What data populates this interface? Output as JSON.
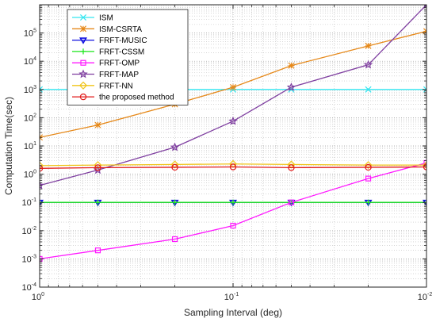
{
  "chart_data": {
    "type": "line",
    "xlabel": "Sampling Interval (deg)",
    "ylabel": "Computation Time(sec)",
    "x_scale": "log",
    "y_scale": "log",
    "x_reversed": true,
    "xlim": [
      1,
      0.01
    ],
    "ylim": [
      0.0001,
      1000000
    ],
    "grid": true,
    "legend_position": "top-left",
    "x_ticks": [
      {
        "base": "10",
        "exp": "0"
      },
      {
        "base": "10",
        "exp": "-1"
      },
      {
        "base": "10",
        "exp": "-2"
      }
    ],
    "y_ticks": [
      {
        "base": "10",
        "exp": "5"
      },
      {
        "base": "10",
        "exp": "4"
      },
      {
        "base": "10",
        "exp": "3"
      },
      {
        "base": "10",
        "exp": "2"
      },
      {
        "base": "10",
        "exp": "1"
      },
      {
        "base": "10",
        "exp": "0"
      },
      {
        "base": "10",
        "exp": "-1"
      },
      {
        "base": "10",
        "exp": "-2"
      },
      {
        "base": "10",
        "exp": "-3"
      },
      {
        "base": "10",
        "exp": "-4"
      }
    ],
    "x": [
      1,
      0.5,
      0.2,
      0.1,
      0.05,
      0.02,
      0.01
    ],
    "series": [
      {
        "name": "ISM",
        "color": "#33e6f0",
        "marker": "x",
        "values": [
          1000,
          1000,
          1000,
          1000,
          1000,
          1000,
          1000
        ]
      },
      {
        "name": "ISM-CSRTA",
        "color": "#e6891a",
        "marker": "asterisk",
        "values": [
          20,
          55,
          300,
          1200,
          7000,
          35000,
          115000
        ]
      },
      {
        "name": "FRFT-MUSIC",
        "color": "#1010e0",
        "marker": "triangle-down",
        "values": [
          0.1,
          0.1,
          0.1,
          0.1,
          0.1,
          0.1,
          0.1
        ]
      },
      {
        "name": "FRFT-CSSM",
        "color": "#19e619",
        "marker": "plus",
        "values": [
          0.1,
          0.1,
          0.1,
          0.1,
          0.1,
          0.1,
          0.1
        ]
      },
      {
        "name": "FRFT-OMP",
        "color": "#ff19ff",
        "marker": "square",
        "values": [
          0.001,
          0.002,
          0.005,
          0.015,
          0.1,
          0.7,
          2.5
        ]
      },
      {
        "name": "FRFT-MAP",
        "color": "#7f3fa0",
        "marker": "star",
        "values": [
          0.4,
          1.4,
          9,
          75,
          1200,
          7500,
          1000000
        ]
      },
      {
        "name": "FRFT-NN",
        "color": "#f0c419",
        "marker": "diamond",
        "values": [
          2,
          2.1,
          2.2,
          2.3,
          2.2,
          2.1,
          2.1
        ]
      },
      {
        "name": "the proposed method",
        "color": "#e01919",
        "marker": "circle",
        "values": [
          1.6,
          1.7,
          1.75,
          1.8,
          1.7,
          1.75,
          1.8
        ]
      }
    ]
  }
}
